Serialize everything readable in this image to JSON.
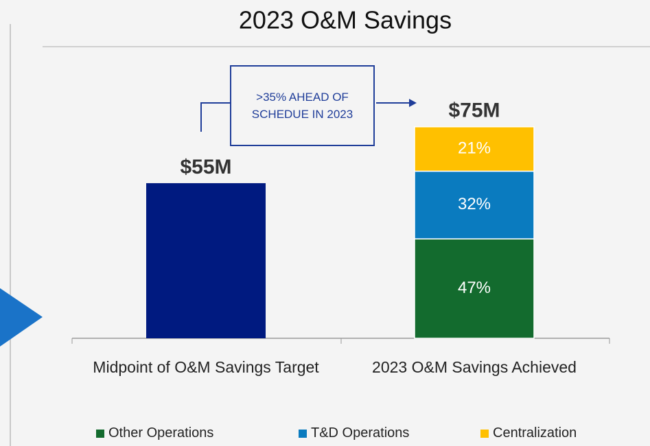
{
  "chart_data": {
    "type": "bar",
    "title": "2023 O&M Savings",
    "categories": [
      "Midpoint of O&M Savings Target",
      "2023 O&M Savings Achieved"
    ],
    "totals": [
      55,
      75
    ],
    "total_labels": [
      "$55M",
      "$75M"
    ],
    "total_color": "#001a80",
    "series": [
      {
        "name": "Other Operations",
        "color": "#136b2e",
        "values": [
          null,
          47
        ],
        "value_labels": [
          null,
          "47%"
        ]
      },
      {
        "name": "T&D Operations",
        "color": "#0a7bbf",
        "values": [
          null,
          32
        ],
        "value_labels": [
          null,
          "32%"
        ]
      },
      {
        "name": "Centralization",
        "color": "#ffc000",
        "values": [
          null,
          21
        ],
        "value_labels": [
          null,
          "21%"
        ]
      }
    ],
    "annotation": ">35% AHEAD OF SCHEDUE IN 2023",
    "legend": "bottom"
  }
}
